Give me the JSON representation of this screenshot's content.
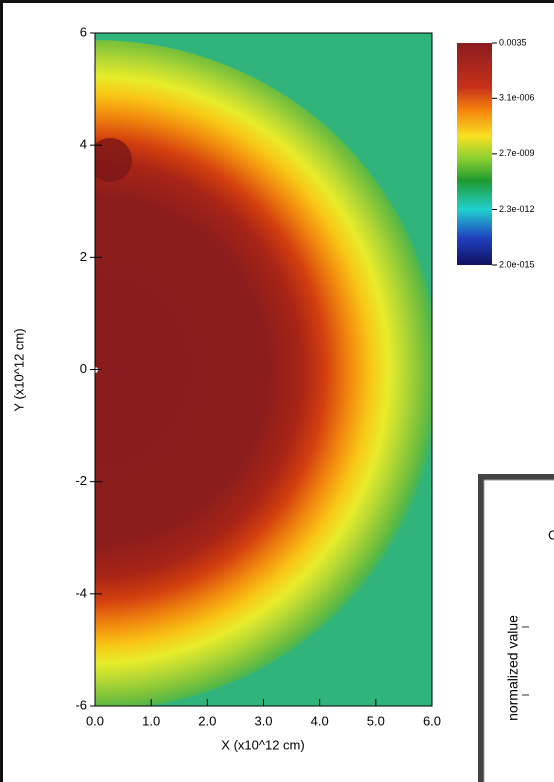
{
  "chart_data": {
    "type": "heatmap",
    "xlabel": "X (x10^12 cm)",
    "ylabel": "Y (x10^12 cm)",
    "xlim": [
      0,
      6
    ],
    "ylim": [
      -6,
      6
    ],
    "xticks": [
      {
        "value": 0,
        "label": "0.0"
      },
      {
        "value": 1,
        "label": "1.0"
      },
      {
        "value": 2,
        "label": "2.0"
      },
      {
        "value": 3,
        "label": "3.0"
      },
      {
        "value": 4,
        "label": "4.0"
      },
      {
        "value": 5,
        "label": "5.0"
      },
      {
        "value": 6,
        "label": "6.0"
      }
    ],
    "yticks": [
      -6,
      -4,
      -2,
      0,
      2,
      4,
      6
    ],
    "colorbar": {
      "scale": "log",
      "lim": [
        2e-15,
        0.0035
      ],
      "ticks": [
        {
          "value": 0.0035,
          "label": "0.0035"
        },
        {
          "value": 3.1e-06,
          "label": "3.1e-006"
        },
        {
          "value": 2.7e-09,
          "label": "2.7e-009"
        },
        {
          "value": 2.3e-12,
          "label": "2.3e-012"
        },
        {
          "value": 2e-15,
          "label": "2.0e-015"
        }
      ]
    }
  },
  "overlay": {
    "ylabel": "normalized value"
  }
}
